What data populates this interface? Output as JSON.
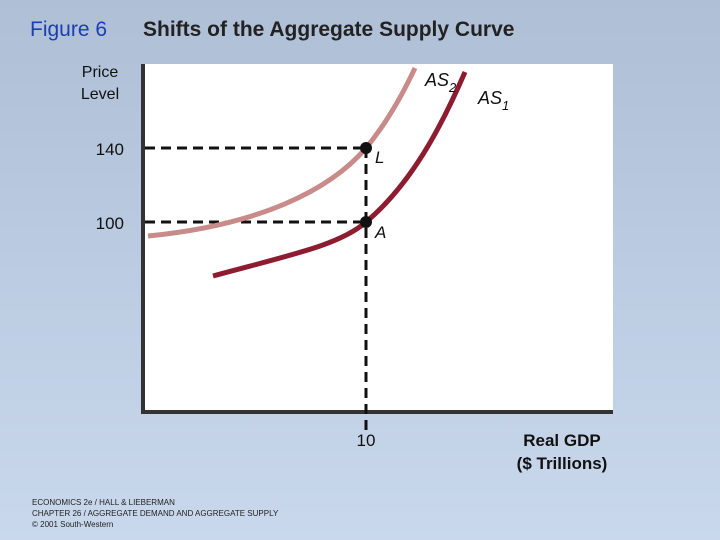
{
  "header": {
    "figure": "Figure 6",
    "title": "Shifts of the Aggregate Supply Curve"
  },
  "axes": {
    "y_label": [
      "Price",
      "Level"
    ],
    "x_label": [
      "Real GDP",
      "($ Trillions)"
    ]
  },
  "ticks": {
    "y": [
      140,
      100
    ],
    "x": [
      10
    ]
  },
  "curves": [
    {
      "name": "AS",
      "sub": "2"
    },
    {
      "name": "AS",
      "sub": "1"
    }
  ],
  "points": [
    "L",
    "A"
  ],
  "footer": [
    "ECONOMICS 2e / HALL & LIEBERMAN",
    "CHAPTER 26 / AGGREGATE DEMAND AND AGGREGATE SUPPLY",
    "© 2001 South-Western"
  ]
}
